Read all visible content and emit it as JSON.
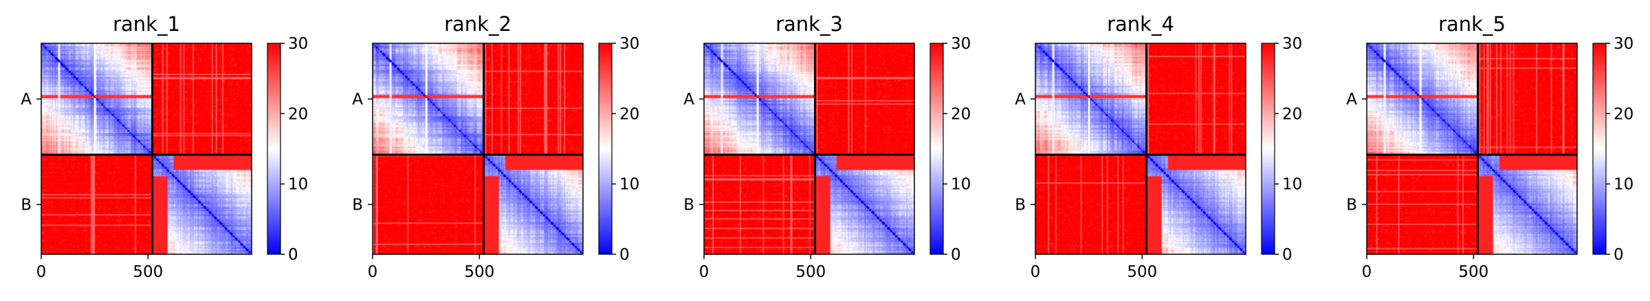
{
  "chart_data": [
    {
      "type": "heatmap",
      "title": "rank_1",
      "x_ticks": [
        0,
        500
      ],
      "y_labels": [
        "A",
        "B"
      ],
      "chain_boundary": 520,
      "xlim": [
        0,
        985
      ],
      "colorbar": {
        "min": 0,
        "max": 30,
        "ticks": [
          0,
          10,
          20,
          30
        ],
        "colors": [
          "#0000ff",
          "#ffffff",
          "#ff0000"
        ]
      },
      "grid": false
    },
    {
      "type": "heatmap",
      "title": "rank_2",
      "x_ticks": [
        0,
        500
      ],
      "y_labels": [
        "A",
        "B"
      ],
      "chain_boundary": 520,
      "xlim": [
        0,
        985
      ],
      "colorbar": {
        "min": 0,
        "max": 30,
        "ticks": [
          0,
          10,
          20,
          30
        ],
        "colors": [
          "#0000ff",
          "#ffffff",
          "#ff0000"
        ]
      },
      "grid": false
    },
    {
      "type": "heatmap",
      "title": "rank_3",
      "x_ticks": [
        0,
        500
      ],
      "y_labels": [
        "A",
        "B"
      ],
      "chain_boundary": 520,
      "xlim": [
        0,
        985
      ],
      "colorbar": {
        "min": 0,
        "max": 30,
        "ticks": [
          0,
          10,
          20,
          30
        ],
        "colors": [
          "#0000ff",
          "#ffffff",
          "#ff0000"
        ]
      },
      "grid": false
    },
    {
      "type": "heatmap",
      "title": "rank_4",
      "x_ticks": [
        0,
        500
      ],
      "y_labels": [
        "A",
        "B"
      ],
      "chain_boundary": 520,
      "xlim": [
        0,
        985
      ],
      "colorbar": {
        "min": 0,
        "max": 30,
        "ticks": [
          0,
          10,
          20,
          30
        ],
        "colors": [
          "#0000ff",
          "#ffffff",
          "#ff0000"
        ]
      },
      "grid": false
    },
    {
      "type": "heatmap",
      "title": "rank_5",
      "x_ticks": [
        0,
        500
      ],
      "y_labels": [
        "A",
        "B"
      ],
      "chain_boundary": 520,
      "xlim": [
        0,
        985
      ],
      "colorbar": {
        "min": 0,
        "max": 30,
        "ticks": [
          0,
          10,
          20,
          30
        ],
        "colors": [
          "#0000ff",
          "#ffffff",
          "#ff0000"
        ]
      },
      "grid": false
    }
  ]
}
